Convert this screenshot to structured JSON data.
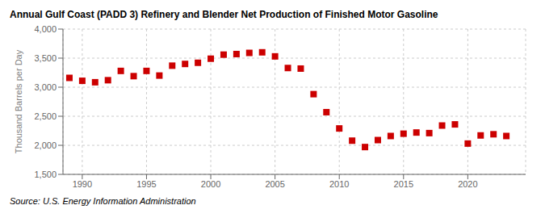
{
  "chart_data": {
    "type": "scatter",
    "title": "Annual Gulf Coast (PADD 3) Refinery and Blender Net Production of Finished Motor Gasoline",
    "ylabel": "Thousand Barrels per Day",
    "source": "Source: U.S. Energy Information Administration",
    "x": [
      1989,
      1990,
      1991,
      1992,
      1993,
      1994,
      1995,
      1996,
      1997,
      1998,
      1999,
      2000,
      2001,
      2002,
      2003,
      2004,
      2005,
      2006,
      2007,
      2008,
      2009,
      2010,
      2011,
      2012,
      2013,
      2014,
      2015,
      2016,
      2017,
      2018,
      2019,
      2020,
      2021,
      2022,
      2023
    ],
    "values": [
      3160,
      3110,
      3085,
      3120,
      3280,
      3190,
      3280,
      3200,
      3370,
      3400,
      3420,
      3490,
      3560,
      3570,
      3590,
      3600,
      3530,
      3330,
      3320,
      2880,
      2570,
      2290,
      2080,
      1970,
      2090,
      2160,
      2200,
      2220,
      2210,
      2340,
      2360,
      2030,
      2170,
      2190,
      2160
    ],
    "color": "#cc0000",
    "marker": "square",
    "xlim": [
      1988.5,
      2024.5
    ],
    "xticks": [
      1990,
      1995,
      2000,
      2005,
      2010,
      2015,
      2020
    ],
    "ylim": [
      1500,
      4000
    ],
    "yticks": [
      {
        "value": 1500,
        "label": "1,500"
      },
      {
        "value": 2000,
        "label": "2,000"
      },
      {
        "value": 2500,
        "label": "2,500"
      },
      {
        "value": 3000,
        "label": "3,000"
      },
      {
        "value": 3500,
        "label": "3,500"
      },
      {
        "value": 4000,
        "label": "4,000"
      }
    ],
    "grid": true
  }
}
